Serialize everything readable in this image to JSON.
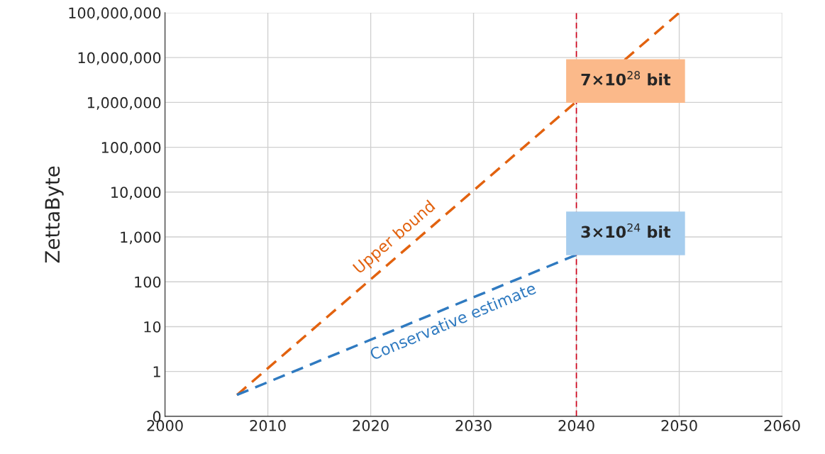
{
  "chart_data": {
    "type": "line",
    "ylabel": "ZettaByte",
    "series": [
      {
        "name": "Upper bound",
        "color": "#e2620f",
        "x": [
          2007,
          2050
        ],
        "values": [
          0.3,
          100000000
        ]
      },
      {
        "name": "Conservative estimate",
        "color": "#2f7ac0",
        "x": [
          2007,
          2040
        ],
        "values": [
          0.3,
          400
        ]
      }
    ],
    "xlim": [
      2000,
      2060
    ],
    "xticks": [
      2000,
      2010,
      2020,
      2030,
      2040,
      2050,
      2060
    ],
    "log": "y",
    "ylim": [
      0.1,
      100000000
    ],
    "yticks": [
      {
        "value": 0.1,
        "label": "0"
      },
      {
        "value": 1,
        "label": "1"
      },
      {
        "value": 10,
        "label": "10"
      },
      {
        "value": 100,
        "label": "100"
      },
      {
        "value": 1000,
        "label": "1,000"
      },
      {
        "value": 10000,
        "label": "10,000"
      },
      {
        "value": 100000,
        "label": "100,000"
      },
      {
        "value": 1000000,
        "label": "1,000,000"
      },
      {
        "value": 10000000,
        "label": "10,000,000"
      },
      {
        "value": 100000000,
        "label": "100,000,000"
      }
    ],
    "ref_lines": [
      {
        "axis": "x",
        "value": 2040,
        "color": "#d0021b",
        "line_style": "dashed"
      }
    ],
    "annotations": [
      {
        "text": "7×10$^{28}$ bit",
        "x": 2040,
        "y": 3000000
      },
      {
        "text": "3×10$^{24}$ bit",
        "x": 2040,
        "y": 1200
      }
    ],
    "grid": true,
    "line_style": "dashed",
    "marker": "none",
    "legend": false
  }
}
